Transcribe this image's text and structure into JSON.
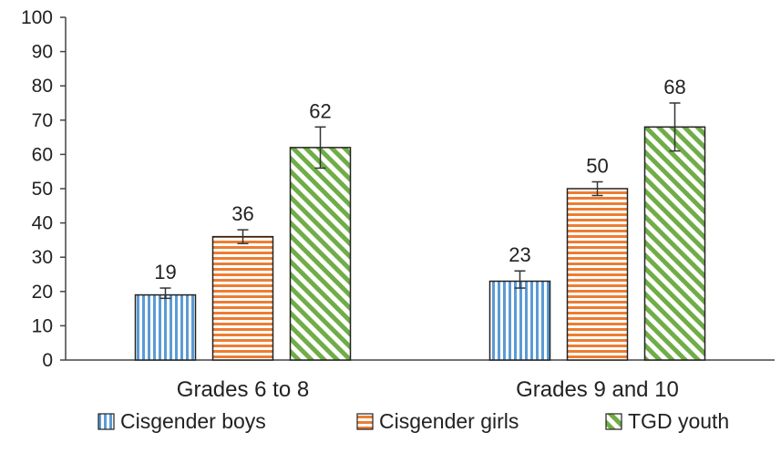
{
  "chart_data": {
    "type": "bar",
    "categories": [
      "Grades 6 to 8",
      "Grades 9 and 10"
    ],
    "series": [
      {
        "name": "Cisgender boys",
        "values": [
          19,
          23
        ],
        "error": [
          [
            18,
            21
          ],
          [
            21,
            26
          ]
        ],
        "color": "#5b9bd5",
        "pattern": "vertical-stripes"
      },
      {
        "name": "Cisgender girls",
        "values": [
          36,
          50
        ],
        "error": [
          [
            34,
            38
          ],
          [
            48,
            52
          ]
        ],
        "color": "#ed7d31",
        "pattern": "horizontal-stripes"
      },
      {
        "name": "TGD youth",
        "values": [
          62,
          68
        ],
        "error": [
          [
            56,
            68
          ],
          [
            61,
            75
          ]
        ],
        "color": "#70ad47",
        "pattern": "diagonal-stripes"
      }
    ],
    "data_labels": [
      [
        "19",
        "23"
      ],
      [
        "36",
        "50"
      ],
      [
        "62",
        "68"
      ]
    ],
    "y_ticks": [
      "0",
      "10",
      "20",
      "30",
      "40",
      "50",
      "60",
      "70",
      "80",
      "90",
      "100"
    ],
    "ylim": [
      0,
      100
    ],
    "title": "",
    "xlabel": "",
    "ylabel": "",
    "grid": false,
    "legend_position": "bottom"
  }
}
